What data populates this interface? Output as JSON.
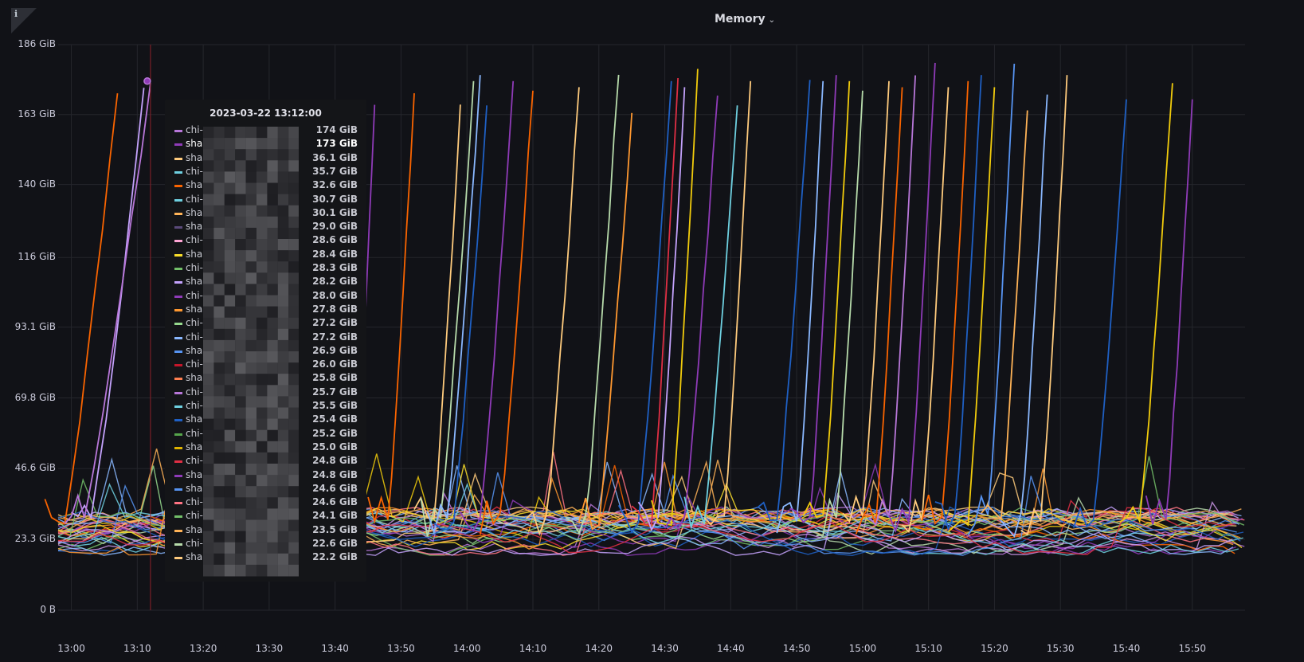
{
  "panel": {
    "title": "Memory",
    "info_icon": "info-icon",
    "menu_icon": "chevron-down-icon"
  },
  "chart_data": {
    "type": "line",
    "title": "Memory",
    "y_ticks": [
      "186 GiB",
      "163 GiB",
      "140 GiB",
      "116 GiB",
      "93.1 GiB",
      "69.8 GiB",
      "46.6 GiB",
      "23.3 GiB",
      "0 B"
    ],
    "y_tick_values": [
      186,
      163,
      140,
      116,
      93.1,
      69.8,
      46.6,
      23.3,
      0
    ],
    "x_ticks": [
      "13:00",
      "13:10",
      "13:20",
      "13:30",
      "13:40",
      "13:50",
      "14:00",
      "14:10",
      "14:20",
      "14:30",
      "14:40",
      "14:50",
      "15:00",
      "15:10",
      "15:20",
      "15:30",
      "15:40",
      "15:50"
    ],
    "x_range": [
      "12:58",
      "15:58"
    ],
    "ylim": [
      0,
      186
    ],
    "unit": "GiB",
    "grid": true,
    "hover_marker_time": "13:12",
    "legend": "hidden (tooltip shown)",
    "series_colors": [
      "#b877d9",
      "#8f3bb8",
      "#ffcb7d",
      "#8ab8ff",
      "#ff7383",
      "#5794f2",
      "#ffb357",
      "#fade2a",
      "#73bf69",
      "#c4a2fc",
      "#ff9830",
      "#6ed0e0",
      "#1f60c4",
      "#e02f44",
      "#b7dbab",
      "#f2cc0c",
      "#ca95e5",
      "#fa6400",
      "#96d98d",
      "#8ab8ff"
    ],
    "spikes": [
      {
        "start": "12:59",
        "end": "13:07",
        "peak": 170,
        "color": "#fa6400"
      },
      {
        "start": "13:03",
        "end": "13:11",
        "peak": 172,
        "color": "#c4a2fc"
      },
      {
        "start": "13:02",
        "end": "13:12",
        "peak": 174,
        "color": "#b877d9"
      },
      {
        "start": "13:43",
        "end": "13:46",
        "peak": 168,
        "color": "#8f3bb8"
      },
      {
        "start": "13:48",
        "end": "13:52",
        "peak": 170,
        "color": "#fa6400"
      },
      {
        "start": "13:55",
        "end": "13:59",
        "peak": 167,
        "color": "#ffcb7d"
      },
      {
        "start": "13:56",
        "end": "14:01",
        "peak": 174,
        "color": "#b7dbab"
      },
      {
        "start": "13:57",
        "end": "14:02",
        "peak": 176,
        "color": "#8ab8ff"
      },
      {
        "start": "13:58",
        "end": "14:03",
        "peak": 166,
        "color": "#1f60c4"
      },
      {
        "start": "14:02",
        "end": "14:07",
        "peak": 174,
        "color": "#8f3bb8"
      },
      {
        "start": "14:05",
        "end": "14:10",
        "peak": 172,
        "color": "#fa6400"
      },
      {
        "start": "14:12",
        "end": "14:17",
        "peak": 172,
        "color": "#ffcb7d"
      },
      {
        "start": "14:18",
        "end": "14:23",
        "peak": 178,
        "color": "#b7dbab"
      },
      {
        "start": "14:20",
        "end": "14:25",
        "peak": 164,
        "color": "#ff9830"
      },
      {
        "start": "14:26",
        "end": "14:31",
        "peak": 174,
        "color": "#1f60c4"
      },
      {
        "start": "14:28",
        "end": "14:32",
        "peak": 175,
        "color": "#e02f44"
      },
      {
        "start": "14:29",
        "end": "14:33",
        "peak": 172,
        "color": "#c4a2fc"
      },
      {
        "start": "14:31",
        "end": "14:35",
        "peak": 178,
        "color": "#f2cc0c"
      },
      {
        "start": "14:33",
        "end": "14:38",
        "peak": 171,
        "color": "#8f3bb8"
      },
      {
        "start": "14:36",
        "end": "14:41",
        "peak": 166,
        "color": "#6ed0e0"
      },
      {
        "start": "14:39",
        "end": "14:43",
        "peak": 174,
        "color": "#ffcb7d"
      },
      {
        "start": "14:47",
        "end": "14:52",
        "peak": 176,
        "color": "#1f60c4"
      },
      {
        "start": "14:50",
        "end": "14:54",
        "peak": 174,
        "color": "#8ab8ff"
      },
      {
        "start": "14:52",
        "end": "14:56",
        "peak": 176,
        "color": "#8f3bb8"
      },
      {
        "start": "14:54",
        "end": "14:58",
        "peak": 174,
        "color": "#f2cc0c"
      },
      {
        "start": "14:56",
        "end": "15:00",
        "peak": 172,
        "color": "#b7dbab"
      },
      {
        "start": "15:00",
        "end": "15:04",
        "peak": 174,
        "color": "#ffcb7d"
      },
      {
        "start": "15:02",
        "end": "15:06",
        "peak": 172,
        "color": "#fa6400"
      },
      {
        "start": "15:04",
        "end": "15:08",
        "peak": 176,
        "color": "#b877d9"
      },
      {
        "start": "15:07",
        "end": "15:11",
        "peak": 180,
        "color": "#8f3bb8"
      },
      {
        "start": "15:09",
        "end": "15:13",
        "peak": 172,
        "color": "#ffcb7d"
      },
      {
        "start": "15:12",
        "end": "15:16",
        "peak": 174,
        "color": "#fa6400"
      },
      {
        "start": "15:14",
        "end": "15:18",
        "peak": 176,
        "color": "#1f60c4"
      },
      {
        "start": "15:16",
        "end": "15:20",
        "peak": 172,
        "color": "#f2cc0c"
      },
      {
        "start": "15:19",
        "end": "15:23",
        "peak": 180,
        "color": "#5794f2"
      },
      {
        "start": "15:21",
        "end": "15:25",
        "peak": 166,
        "color": "#ffb357"
      },
      {
        "start": "15:24",
        "end": "15:28",
        "peak": 170,
        "color": "#8ab8ff"
      },
      {
        "start": "15:27",
        "end": "15:31",
        "peak": 176,
        "color": "#ffcb7d"
      },
      {
        "start": "15:35",
        "end": "15:40",
        "peak": 168,
        "color": "#1f60c4"
      },
      {
        "start": "15:42",
        "end": "15:47",
        "peak": 174,
        "color": "#f2cc0c"
      },
      {
        "start": "15:46",
        "end": "15:50",
        "peak": 168,
        "color": "#8f3bb8"
      }
    ],
    "baseline_band": [
      20,
      30
    ]
  },
  "tooltip": {
    "time": "2023-03-22 13:12:00",
    "rows": [
      {
        "name": "chi-",
        "value": "174 GiB",
        "color": "#b877d9"
      },
      {
        "name": "sha",
        "value": "173 GiB",
        "color": "#8f3bb8",
        "highlight": true
      },
      {
        "name": "sha",
        "value": "36.1 GiB",
        "color": "#ffcb7d"
      },
      {
        "name": "chi-",
        "value": "35.7 GiB",
        "color": "#6ed0e0"
      },
      {
        "name": "sha",
        "value": "32.6 GiB",
        "color": "#fa6400"
      },
      {
        "name": "chi-",
        "value": "30.7 GiB",
        "color": "#6ed0e0"
      },
      {
        "name": "sha",
        "value": "30.1 GiB",
        "color": "#ffb357"
      },
      {
        "name": "sha",
        "value": "29.0 GiB",
        "color": "#5a4a7a"
      },
      {
        "name": "chi-",
        "value": "28.6 GiB",
        "color": "#ffa6d5"
      },
      {
        "name": "sha",
        "value": "28.4 GiB",
        "color": "#fade2a"
      },
      {
        "name": "chi-",
        "value": "28.3 GiB",
        "color": "#73bf69"
      },
      {
        "name": "sha",
        "value": "28.2 GiB",
        "color": "#c4a2fc"
      },
      {
        "name": "chi-",
        "value": "28.0 GiB",
        "color": "#8f3bb8"
      },
      {
        "name": "sha",
        "value": "27.8 GiB",
        "color": "#ff9830"
      },
      {
        "name": "chi-",
        "value": "27.2 GiB",
        "color": "#96d98d"
      },
      {
        "name": "chi-",
        "value": "27.2 GiB",
        "color": "#8ab8ff"
      },
      {
        "name": "sha",
        "value": "26.9 GiB",
        "color": "#5794f2"
      },
      {
        "name": "chi-",
        "value": "26.0 GiB",
        "color": "#c4162a"
      },
      {
        "name": "sha",
        "value": "25.8 GiB",
        "color": "#ff7f50"
      },
      {
        "name": "chi-",
        "value": "25.7 GiB",
        "color": "#b877d9"
      },
      {
        "name": "chi-",
        "value": "25.5 GiB",
        "color": "#6ed0e0"
      },
      {
        "name": "sha",
        "value": "25.4 GiB",
        "color": "#1f60c4"
      },
      {
        "name": "chi-",
        "value": "25.2 GiB",
        "color": "#56a64b"
      },
      {
        "name": "sha",
        "value": "25.0 GiB",
        "color": "#e0b400"
      },
      {
        "name": "chi-",
        "value": "24.8 GiB",
        "color": "#e02f44"
      },
      {
        "name": "sha",
        "value": "24.8 GiB",
        "color": "#8f3bb8"
      },
      {
        "name": "sha",
        "value": "24.6 GiB",
        "color": "#5794f2"
      },
      {
        "name": "chi-",
        "value": "24.6 GiB",
        "color": "#ff7383"
      },
      {
        "name": "chi-",
        "value": "24.1 GiB",
        "color": "#73bf69"
      },
      {
        "name": "sha",
        "value": "23.5 GiB",
        "color": "#ffb357"
      },
      {
        "name": "chi-",
        "value": "22.6 GiB",
        "color": "#b7dbab"
      },
      {
        "name": "sha",
        "value": "22.2 GiB",
        "color": "#ffcb7d"
      }
    ]
  }
}
